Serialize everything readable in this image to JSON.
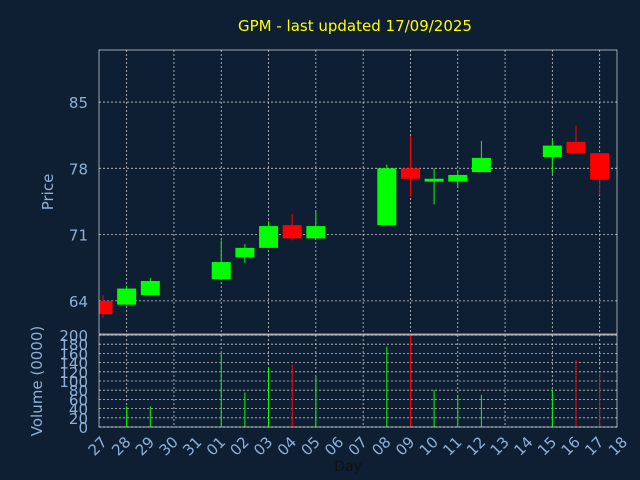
{
  "chart_data": {
    "type": "candlestick",
    "title": "GPM - last updated 17/09/2025",
    "colors": {
      "background": "#0f1f33",
      "title": "#ffff00",
      "axis_text": "#8fb0d8",
      "up": "#00ff00",
      "down": "#ff0000",
      "grid": "#c8c8c8"
    },
    "price_panel": {
      "ylabel": "Price",
      "ylim": [
        60.5,
        90.5
      ],
      "yticks": [
        64,
        71,
        78,
        85
      ],
      "ytick_labels": [
        "64",
        "71",
        "78",
        "85"
      ],
      "grid": true
    },
    "volume_panel": {
      "ylabel": "Volume (0000)",
      "ylim": [
        0,
        200
      ],
      "yticks": [
        0,
        20,
        40,
        60,
        80,
        100,
        120,
        140,
        160,
        180,
        200
      ],
      "ytick_labels": [
        "0",
        "20",
        "40",
        "60",
        "80",
        "100",
        "120",
        "140",
        "160",
        "180",
        "200"
      ],
      "grid": true
    },
    "xlabel": "Day",
    "x_ticks": [
      "27",
      "28",
      "29",
      "30",
      "31",
      "01",
      "02",
      "03",
      "04",
      "05",
      "06",
      "07",
      "08",
      "09",
      "10",
      "11",
      "12",
      "13",
      "14",
      "15",
      "16",
      "17",
      "18"
    ],
    "candles": [
      {
        "day": "27",
        "open": 64.0,
        "high": 64.6,
        "low": 62.2,
        "close": 62.6,
        "volume": 0
      },
      {
        "day": "28",
        "open": 63.6,
        "high": 65.6,
        "low": 63.6,
        "close": 65.3,
        "volume": 45
      },
      {
        "day": "29",
        "open": 64.6,
        "high": 66.4,
        "low": 64.6,
        "close": 66.1,
        "volume": 45
      },
      {
        "day": "01",
        "open": 66.3,
        "high": 70.4,
        "low": 66.3,
        "close": 68.1,
        "volume": 160
      },
      {
        "day": "02",
        "open": 68.6,
        "high": 70.0,
        "low": 68.0,
        "close": 69.6,
        "volume": 75
      },
      {
        "day": "03",
        "open": 69.6,
        "high": 72.4,
        "low": 69.6,
        "close": 71.9,
        "volume": 130
      },
      {
        "day": "04",
        "open": 72.0,
        "high": 73.2,
        "low": 70.4,
        "close": 70.6,
        "volume": 135
      },
      {
        "day": "05",
        "open": 70.6,
        "high": 73.4,
        "low": 70.6,
        "close": 71.9,
        "volume": 110
      },
      {
        "day": "08",
        "open": 72.0,
        "high": 78.4,
        "low": 72.0,
        "close": 78.0,
        "volume": 175
      },
      {
        "day": "09",
        "open": 78.0,
        "high": 81.4,
        "low": 75.0,
        "close": 76.9,
        "volume": 200
      },
      {
        "day": "10",
        "open": 76.6,
        "high": 78.0,
        "low": 74.2,
        "close": 76.9,
        "volume": 80
      },
      {
        "day": "11",
        "open": 76.6,
        "high": 77.8,
        "low": 76.0,
        "close": 77.3,
        "volume": 70
      },
      {
        "day": "12",
        "open": 77.6,
        "high": 80.9,
        "low": 77.6,
        "close": 79.1,
        "volume": 70
      },
      {
        "day": "15",
        "open": 79.2,
        "high": 81.0,
        "low": 77.4,
        "close": 80.4,
        "volume": 80
      },
      {
        "day": "16",
        "open": 80.8,
        "high": 82.5,
        "low": 79.6,
        "close": 79.6,
        "volume": 145
      },
      {
        "day": "17",
        "open": 79.6,
        "high": 79.6,
        "low": 75.2,
        "close": 76.8,
        "volume": 120
      }
    ]
  }
}
